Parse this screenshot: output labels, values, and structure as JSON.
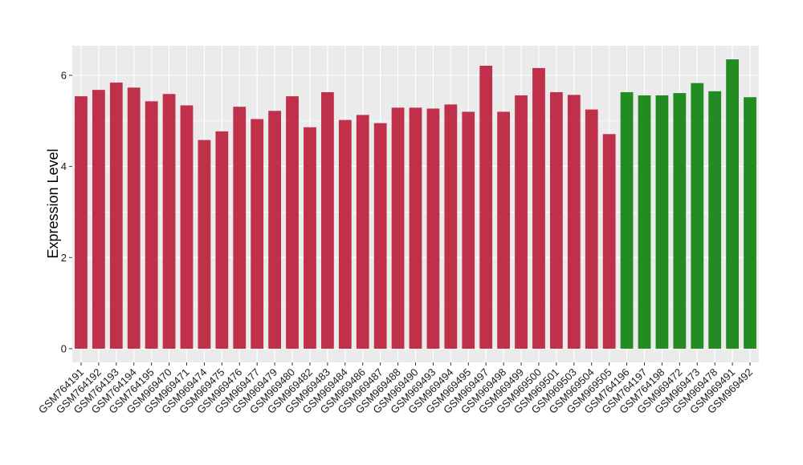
{
  "chart_data": {
    "type": "bar",
    "title": "",
    "xlabel": "",
    "ylabel": "Expression Level",
    "ylim": [
      -0.3,
      6.65
    ],
    "yticks": [
      0,
      2,
      4,
      6
    ],
    "grid": true,
    "categories": [
      "GSM764191",
      "GSM764192",
      "GSM764193",
      "GSM764194",
      "GSM764195",
      "GSM969470",
      "GSM969471",
      "GSM969474",
      "GSM969475",
      "GSM969476",
      "GSM969477",
      "GSM969479",
      "GSM969480",
      "GSM969482",
      "GSM969483",
      "GSM969484",
      "GSM969486",
      "GSM969487",
      "GSM969488",
      "GSM969490",
      "GSM969493",
      "GSM969494",
      "GSM969495",
      "GSM969497",
      "GSM969498",
      "GSM969499",
      "GSM969500",
      "GSM969501",
      "GSM969503",
      "GSM969504",
      "GSM969505",
      "GSM764196",
      "GSM764197",
      "GSM764198",
      "GSM969472",
      "GSM969473",
      "GSM969478",
      "GSM969491",
      "GSM969492"
    ],
    "values": [
      5.54,
      5.68,
      5.84,
      5.73,
      5.43,
      5.59,
      5.34,
      4.58,
      4.77,
      5.31,
      5.04,
      5.22,
      5.54,
      4.86,
      5.63,
      5.02,
      5.13,
      4.95,
      5.29,
      5.29,
      5.27,
      5.36,
      5.2,
      6.21,
      5.2,
      5.56,
      6.16,
      5.63,
      5.57,
      5.25,
      4.71,
      5.63,
      5.56,
      5.56,
      5.61,
      5.83,
      5.65,
      6.35,
      5.52
    ],
    "groups": [
      0,
      0,
      0,
      0,
      0,
      0,
      0,
      0,
      0,
      0,
      0,
      0,
      0,
      0,
      0,
      0,
      0,
      0,
      0,
      0,
      0,
      0,
      0,
      0,
      0,
      0,
      0,
      0,
      0,
      0,
      0,
      1,
      1,
      1,
      1,
      1,
      1,
      1,
      1
    ],
    "colors": [
      "#c0304a",
      "#228b22"
    ],
    "panel_background": "#ebebeb",
    "grid_color": "#ffffff"
  }
}
